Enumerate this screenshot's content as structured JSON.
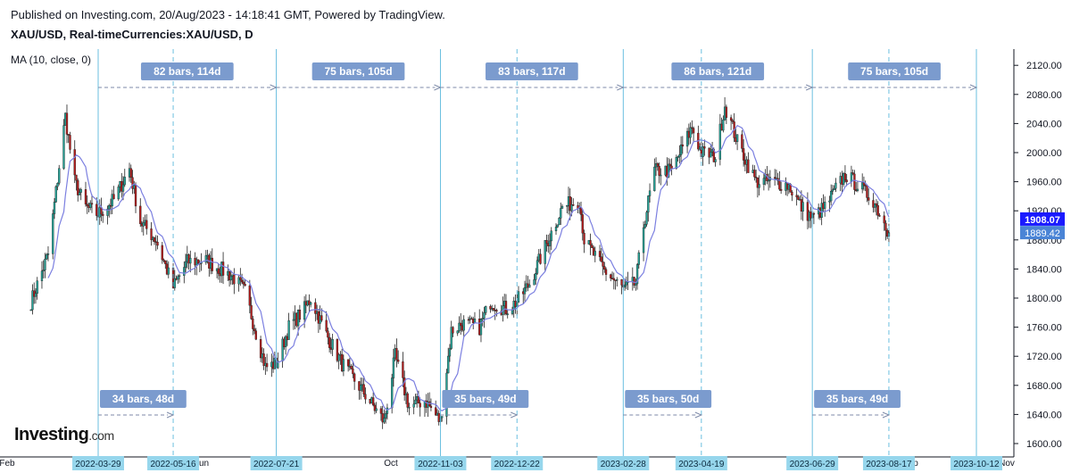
{
  "header": {
    "published": "Published on Investing.com, 20/Aug/2023 - 14:18:41 GMT, Powered by TradingView.",
    "symbol": "XAU/USD, Real-timeCurrencies:XAU/USD, D",
    "indicator": "MA (10, close, 0)"
  },
  "logo": {
    "brand": "Investing",
    "suffix": ".com"
  },
  "colors": {
    "up": "#26a69a",
    "down": "#b71c1c",
    "ma": "#7b7fe0",
    "range_label_bg": "#7b9bce",
    "vline": "#5bb8dc",
    "date_tag_bg": "#96d6ec",
    "price_tag_ma": "#1a1aff",
    "price_tag_last": "#4a84d6"
  },
  "chart_data": {
    "type": "candlestick",
    "y_axis": {
      "ylim": [
        1600,
        2140
      ],
      "ticks": [
        1600,
        1640,
        1680,
        1720,
        1760,
        1800,
        1840,
        1880,
        1920,
        1960,
        2000,
        2040,
        2080,
        2120
      ]
    },
    "x_axis": {
      "plain_labels": [
        "Feb",
        "Jun",
        "Oct",
        "p",
        "Nov"
      ],
      "date_tags": [
        "2022-03-29",
        "2022-05-16",
        "2022-07-21",
        "2022-11-03",
        "2022-12-22",
        "2023-02-28",
        "2023-04-19",
        "2023-06-29",
        "2023-08-17",
        "2023-10-12"
      ]
    },
    "current_prices": {
      "ma": "1908.07",
      "last": "1889.42"
    },
    "ma_period": 10,
    "range_annotations_top": [
      {
        "label": "82 bars, 114d",
        "from": "2022-03-29",
        "to": "2022-07-21"
      },
      {
        "label": "75 bars, 105d",
        "from": "2022-07-21",
        "to": "2022-11-03"
      },
      {
        "label": "83 bars, 117d",
        "from": "2022-11-03",
        "to": "2023-02-28"
      },
      {
        "label": "86 bars, 121d",
        "from": "2023-02-28",
        "to": "2023-06-29"
      },
      {
        "label": "75 bars, 105d",
        "from": "2023-06-29",
        "to": "2023-10-12"
      }
    ],
    "range_annotations_bottom": [
      {
        "label": "34 bars, 48d",
        "from": "2022-03-29",
        "to": "2022-05-16"
      },
      {
        "label": "35 bars, 49d",
        "from": "2022-11-03",
        "to": "2022-12-22"
      },
      {
        "label": "35 bars, 50d",
        "from": "2023-02-28",
        "to": "2023-04-19"
      },
      {
        "label": "35 bars, 49d",
        "from": "2023-06-29",
        "to": "2023-08-17"
      }
    ],
    "price_path": [
      [
        "2022-02-14",
        1795
      ],
      [
        "2022-02-25",
        1860
      ],
      [
        "2022-03-08",
        2050
      ],
      [
        "2022-03-14",
        1960
      ],
      [
        "2022-03-21",
        1925
      ],
      [
        "2022-03-29",
        1915
      ],
      [
        "2022-04-08",
        1935
      ],
      [
        "2022-04-18",
        1978
      ],
      [
        "2022-04-25",
        1905
      ],
      [
        "2022-05-05",
        1880
      ],
      [
        "2022-05-16",
        1815
      ],
      [
        "2022-05-25",
        1850
      ],
      [
        "2022-06-06",
        1852
      ],
      [
        "2022-06-15",
        1840
      ],
      [
        "2022-06-23",
        1830
      ],
      [
        "2022-07-01",
        1808
      ],
      [
        "2022-07-14",
        1705
      ],
      [
        "2022-07-21",
        1710
      ],
      [
        "2022-07-29",
        1760
      ],
      [
        "2022-08-08",
        1785
      ],
      [
        "2022-08-12",
        1800
      ],
      [
        "2022-08-22",
        1750
      ],
      [
        "2022-09-01",
        1710
      ],
      [
        "2022-09-15",
        1670
      ],
      [
        "2022-09-28",
        1630
      ],
      [
        "2022-10-05",
        1720
      ],
      [
        "2022-10-14",
        1650
      ],
      [
        "2022-10-24",
        1660
      ],
      [
        "2022-11-03",
        1630
      ],
      [
        "2022-11-10",
        1755
      ],
      [
        "2022-11-17",
        1765
      ],
      [
        "2022-11-28",
        1760
      ],
      [
        "2022-12-05",
        1795
      ],
      [
        "2022-12-15",
        1785
      ],
      [
        "2022-12-22",
        1795
      ],
      [
        "2022-12-30",
        1820
      ],
      [
        "2023-01-10",
        1875
      ],
      [
        "2023-01-20",
        1925
      ],
      [
        "2023-01-31",
        1935
      ],
      [
        "2023-02-03",
        1880
      ],
      [
        "2023-02-15",
        1840
      ],
      [
        "2023-02-22",
        1825
      ],
      [
        "2023-02-28",
        1812
      ],
      [
        "2023-03-08",
        1820
      ],
      [
        "2023-03-13",
        1900
      ],
      [
        "2023-03-20",
        1975
      ],
      [
        "2023-03-31",
        1975
      ],
      [
        "2023-04-13",
        2035
      ],
      [
        "2023-04-19",
        2000
      ],
      [
        "2023-04-28",
        1995
      ],
      [
        "2023-05-04",
        2065
      ],
      [
        "2023-05-12",
        2015
      ],
      [
        "2023-05-24",
        1960
      ],
      [
        "2023-06-05",
        1960
      ],
      [
        "2023-06-14",
        1955
      ],
      [
        "2023-06-22",
        1925
      ],
      [
        "2023-06-29",
        1910
      ],
      [
        "2023-07-07",
        1925
      ],
      [
        "2023-07-20",
        1970
      ],
      [
        "2023-07-28",
        1955
      ],
      [
        "2023-08-07",
        1935
      ],
      [
        "2023-08-17",
        1890
      ]
    ]
  }
}
